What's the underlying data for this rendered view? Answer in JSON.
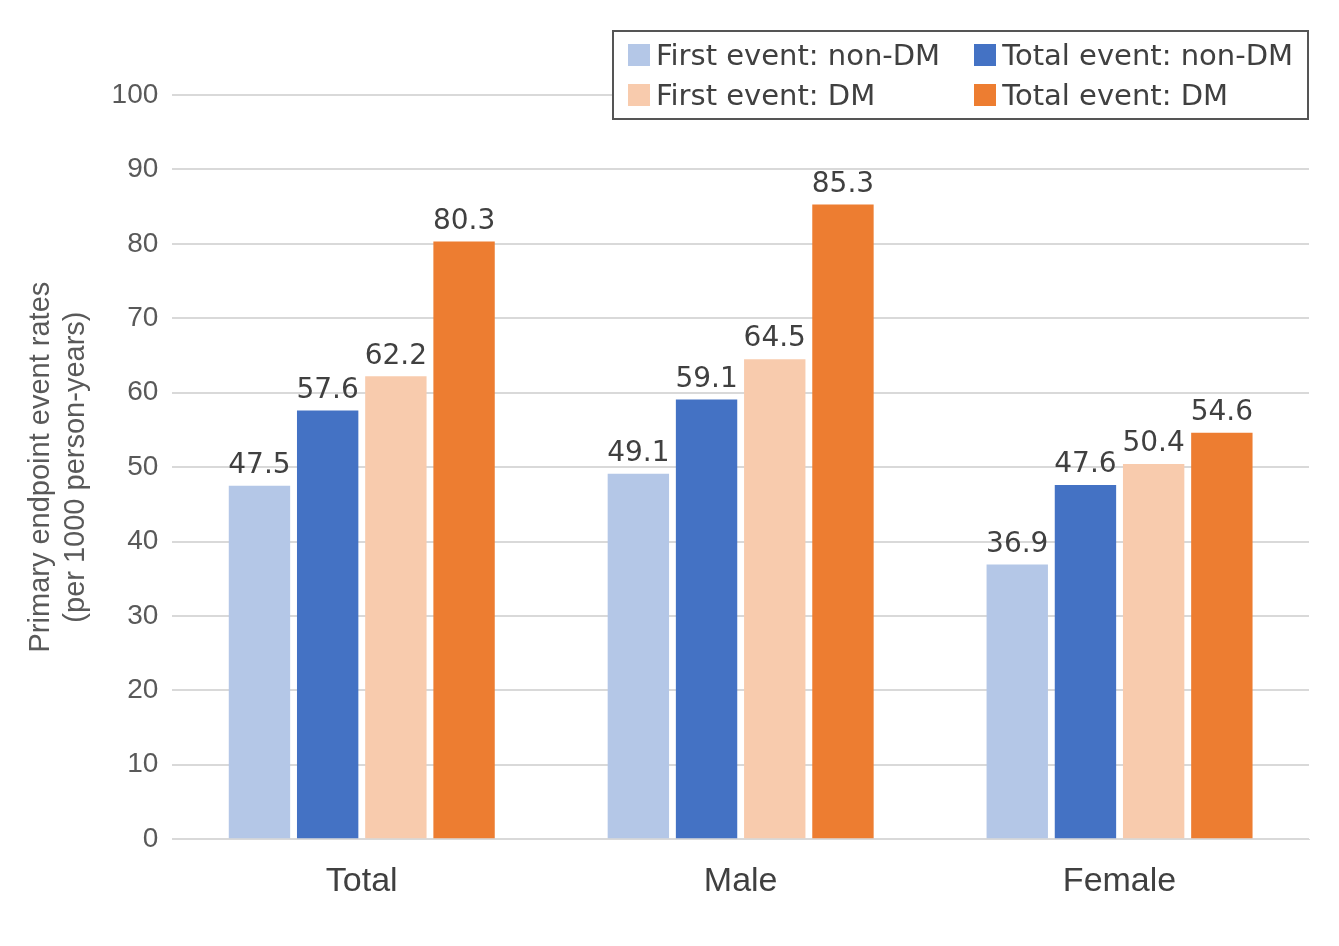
{
  "chart_data": {
    "type": "bar",
    "ylabel": "Primary endpoint event rates\n(per 1000 person-years)",
    "categories": [
      "Total",
      "Male",
      "Female"
    ],
    "series": [
      {
        "name": "First event: non-DM",
        "color": "#b4c7e7",
        "values": [
          47.5,
          49.1,
          36.9
        ]
      },
      {
        "name": "Total event: non-DM",
        "color": "#4472c4",
        "values": [
          57.6,
          59.1,
          47.6
        ]
      },
      {
        "name": "First event: DM",
        "color": "#f8cbad",
        "values": [
          62.2,
          64.5,
          50.4
        ]
      },
      {
        "name": "Total event: DM",
        "color": "#ed7d31",
        "values": [
          80.3,
          85.3,
          54.6
        ]
      }
    ],
    "ylim": [
      0,
      100
    ],
    "yticks": [
      0,
      10,
      20,
      30,
      40,
      50,
      60,
      70,
      80,
      90,
      100
    ],
    "grid": "y",
    "legend": "top right",
    "data_labels": true
  }
}
